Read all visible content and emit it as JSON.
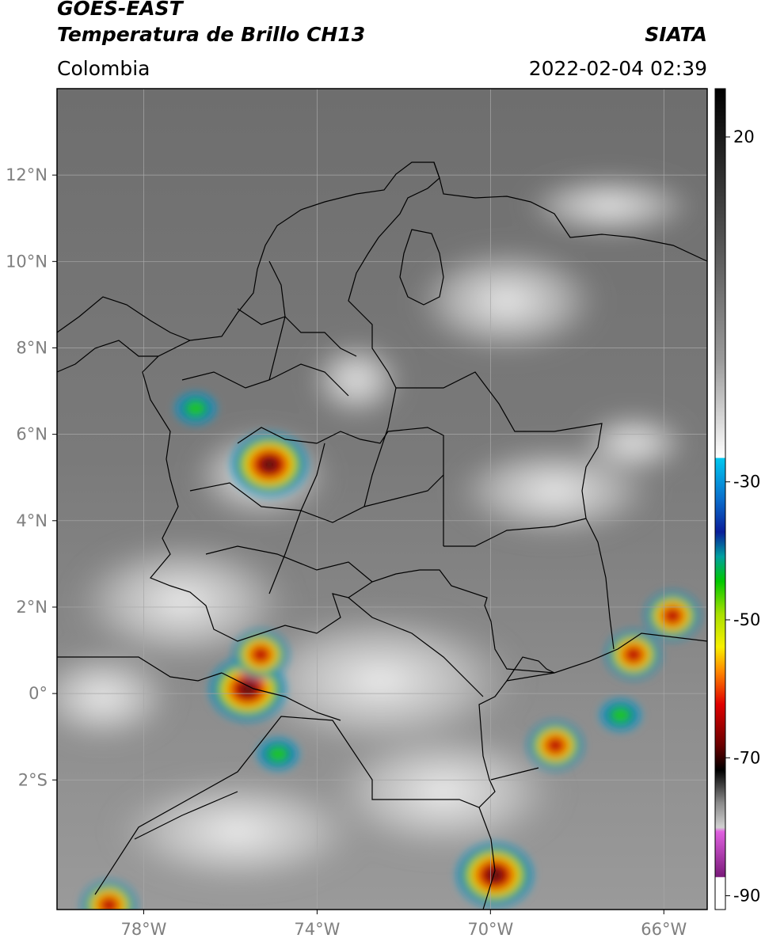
{
  "header": {
    "satellite": "GOES-EAST",
    "product": "Temperatura de Brillo CH13",
    "organization": "SIATA",
    "region": "Colombia",
    "datetime": "2022-02-04 02:39"
  },
  "map": {
    "projection": "PlateCarree",
    "lon_range": [
      -80,
      -65
    ],
    "lat_range": [
      -5,
      14
    ],
    "gridlines": true,
    "lat_ticks": [
      {
        "value": 12,
        "label": "12°N"
      },
      {
        "value": 10,
        "label": "10°N"
      },
      {
        "value": 8,
        "label": "8°N"
      },
      {
        "value": 6,
        "label": "6°N"
      },
      {
        "value": 4,
        "label": "4°N"
      },
      {
        "value": 2,
        "label": "2°N"
      },
      {
        "value": 0,
        "label": "0°"
      },
      {
        "value": -2,
        "label": "2°S"
      }
    ],
    "lon_ticks": [
      {
        "value": -78,
        "label": "78°W"
      },
      {
        "value": -74,
        "label": "74°W"
      },
      {
        "value": -70,
        "label": "70°W"
      },
      {
        "value": -66,
        "label": "66°W"
      }
    ],
    "convective_cells": [
      {
        "lon": -75.1,
        "lat": 5.3,
        "intensity": "very-cold"
      },
      {
        "lon": -75.6,
        "lat": 0.1,
        "intensity": "very-cold"
      },
      {
        "lon": -75.3,
        "lat": 0.9,
        "intensity": "cold"
      },
      {
        "lon": -65.8,
        "lat": 1.8,
        "intensity": "cold"
      },
      {
        "lon": -66.7,
        "lat": 0.9,
        "intensity": "cold"
      },
      {
        "lon": -69.9,
        "lat": -4.2,
        "intensity": "very-cold"
      },
      {
        "lon": -68.5,
        "lat": -1.2,
        "intensity": "cold"
      },
      {
        "lon": -67.0,
        "lat": -0.5,
        "intensity": "moderate"
      },
      {
        "lon": -78.8,
        "lat": -4.9,
        "intensity": "cold"
      },
      {
        "lon": -76.8,
        "lat": 6.6,
        "intensity": "moderate"
      },
      {
        "lon": -74.9,
        "lat": -1.4,
        "intensity": "moderate"
      }
    ]
  },
  "colorbar": {
    "units": "°C",
    "range": [
      -92,
      27
    ],
    "ticks": [
      {
        "value": 20,
        "label": "20"
      },
      {
        "value": -30,
        "label": "-30"
      },
      {
        "value": -50,
        "label": "-50"
      },
      {
        "value": -70,
        "label": "-70"
      },
      {
        "value": -90,
        "label": "-90"
      }
    ],
    "colors": {
      "warm_black": "#000000",
      "grey_mid": "#808080",
      "white": "#ffffff",
      "cyan": "#00c8f0",
      "blue": "#0a1e9a",
      "green": "#00c800",
      "yellow": "#f8f000",
      "orange": "#ff8800",
      "red": "#e00000",
      "dark_red": "#6a0000",
      "magenta": "#e060e0",
      "purple": "#7a1a7a"
    }
  }
}
